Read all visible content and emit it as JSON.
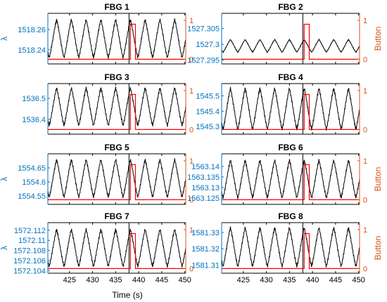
{
  "colors": {
    "lambda": "#0072bd",
    "button": "#d95319",
    "signal": "#000000",
    "step": "#ff0000",
    "frame": "#000000"
  },
  "shared": {
    "xlabel": "Time (s)",
    "ylabel_left": "λ",
    "ylabel_right": "Button",
    "x_ticks": [
      425,
      430,
      435,
      440,
      445,
      450
    ],
    "xlim": [
      420.3,
      450.2
    ],
    "right_ylim": [
      -0.12,
      1.18
    ],
    "right_ticks": [
      0,
      1
    ]
  },
  "chart_data": [
    {
      "type": "line",
      "title": "FBG 1",
      "ylim": [
        1518.226,
        1518.276
      ],
      "y_ticks": [
        1518.24,
        1518.26
      ],
      "series": [
        {
          "role": "wavelength",
          "period": 3.2,
          "phase": 422.2,
          "trough": 1518.232,
          "peak": 1518.27
        },
        {
          "role": "button",
          "x": [
            420.3,
            438.2,
            438.2,
            439.3,
            439.3,
            450.2
          ],
          "y": [
            0,
            0,
            0.9,
            0.9,
            0,
            0
          ]
        }
      ]
    },
    {
      "type": "line",
      "title": "FBG 2",
      "ylim": [
        1527.2938,
        1527.3098
      ],
      "y_ticks": [
        1527.295,
        1527.3,
        1527.305
      ],
      "series": [
        {
          "role": "wavelength",
          "period": 3.2,
          "phase": 422.2,
          "trough": 1527.2975,
          "peak": 1527.3015
        },
        {
          "role": "button",
          "x": [
            420.3,
            438.2,
            438.2,
            439.3,
            439.3,
            450.2
          ],
          "y": [
            0,
            0,
            0.9,
            0.9,
            0,
            0
          ]
        }
      ]
    },
    {
      "type": "line",
      "title": "FBG 3",
      "ylim": [
        1536.33,
        1536.57
      ],
      "y_ticks": [
        1536.4,
        1536.5
      ],
      "series": [
        {
          "role": "wavelength",
          "period": 3.2,
          "phase": 422.2,
          "trough": 1536.37,
          "peak": 1536.55
        },
        {
          "role": "button",
          "x": [
            420.3,
            438.2,
            438.2,
            439.3,
            439.3,
            450.2
          ],
          "y": [
            0,
            0,
            0.9,
            0.9,
            0,
            0
          ]
        }
      ]
    },
    {
      "type": "line",
      "title": "FBG 4",
      "ylim": [
        1545.25,
        1545.58
      ],
      "y_ticks": [
        1545.3,
        1545.4,
        1545.5
      ],
      "series": [
        {
          "role": "wavelength",
          "period": 3.2,
          "phase": 422.2,
          "trough": 1545.28,
          "peak": 1545.55
        },
        {
          "role": "button",
          "x": [
            420.3,
            438.2,
            438.2,
            439.3,
            439.3,
            450.2
          ],
          "y": [
            0,
            0,
            0.9,
            0.9,
            0,
            0
          ]
        }
      ]
    },
    {
      "type": "line",
      "title": "FBG 5",
      "ylim": [
        1554.52,
        1554.7
      ],
      "y_ticks": [
        1554.55,
        1554.6,
        1554.65
      ],
      "series": [
        {
          "role": "wavelength",
          "period": 3.2,
          "phase": 422.2,
          "trough": 1554.545,
          "peak": 1554.68
        },
        {
          "role": "button",
          "x": [
            420.3,
            438.2,
            438.2,
            439.3,
            439.3,
            450.2
          ],
          "y": [
            0,
            0,
            0.9,
            0.9,
            0,
            0
          ]
        }
      ]
    },
    {
      "type": "line",
      "title": "FBG 6",
      "ylim": [
        1563.122,
        1563.146
      ],
      "y_ticks": [
        1563.125,
        1563.13,
        1563.135,
        1563.14
      ],
      "series": [
        {
          "role": "wavelength",
          "period": 3.2,
          "phase": 422.2,
          "trough": 1563.125,
          "peak": 1563.143
        },
        {
          "role": "button",
          "x": [
            420.3,
            438.2,
            438.2,
            439.3,
            439.3,
            450.2
          ],
          "y": [
            0,
            0,
            0.9,
            0.9,
            0,
            0
          ]
        }
      ]
    },
    {
      "type": "line",
      "title": "FBG 7",
      "ylim": [
        1572.1035,
        1572.1135
      ],
      "y_ticks": [
        1572.104,
        1572.106,
        1572.108,
        1572.11,
        1572.112
      ],
      "series": [
        {
          "role": "wavelength",
          "period": 3.2,
          "phase": 422.2,
          "trough": 1572.1048,
          "peak": 1572.1122
        },
        {
          "role": "button",
          "x": [
            420.3,
            438.2,
            438.2,
            439.3,
            439.3,
            450.2
          ],
          "y": [
            0,
            0,
            0.9,
            0.9,
            0,
            0
          ]
        }
      ]
    },
    {
      "type": "line",
      "title": "FBG 8",
      "ylim": [
        1581.305,
        1581.336
      ],
      "y_ticks": [
        1581.31,
        1581.32,
        1581.33
      ],
      "series": [
        {
          "role": "wavelength",
          "period": 3.2,
          "phase": 422.2,
          "trough": 1581.309,
          "peak": 1581.333
        },
        {
          "role": "button",
          "x": [
            420.3,
            438.2,
            438.2,
            439.3,
            439.3,
            450.2
          ],
          "y": [
            0,
            0,
            0.9,
            0.9,
            0,
            0
          ]
        }
      ]
    }
  ]
}
